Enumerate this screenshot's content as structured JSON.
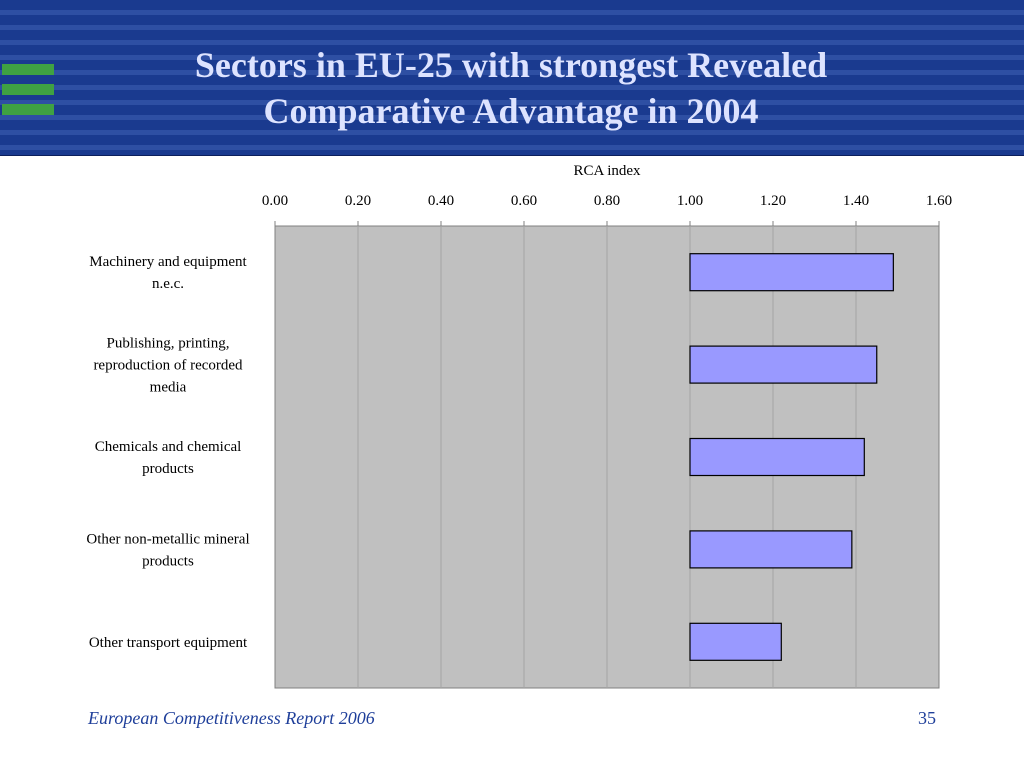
{
  "header": {
    "title_line1": "Sectors in EU-25 with strongest Revealed",
    "title_line2": "Comparative Advantage in 2004"
  },
  "footer": {
    "source": "European Competitiveness Report 2006",
    "page_number": "35"
  },
  "colors": {
    "header_band": "#1a3a8f",
    "header_stripe": "#2e4fa3",
    "title_text": "#dde3ff",
    "logo_green": "#3fa142",
    "plot_background": "#c0c0c0",
    "bar_fill": "#9999ff",
    "footer_text": "#1f3f9a"
  },
  "chart_data": {
    "type": "bar",
    "orientation": "horizontal",
    "xlabel": "RCA index",
    "x_axis_position": "top",
    "xlim": [
      0,
      1.6
    ],
    "xticks": [
      "0.00",
      "0.20",
      "0.40",
      "0.60",
      "0.80",
      "1.00",
      "1.20",
      "1.40",
      "1.60"
    ],
    "grid": true,
    "bar_baseline": 1.0,
    "categories": [
      [
        "Machinery and equipment",
        "n.e.c."
      ],
      [
        "Publishing, printing,",
        "reproduction of recorded",
        "media"
      ],
      [
        "Chemicals and chemical",
        "products"
      ],
      [
        "Other non-metallic mineral",
        "products"
      ],
      [
        "Other transport equipment"
      ]
    ],
    "values": [
      1.49,
      1.45,
      1.42,
      1.39,
      1.22
    ]
  }
}
